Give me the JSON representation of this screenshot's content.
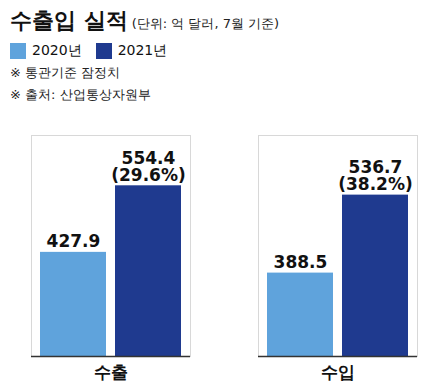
{
  "chart_data": {
    "type": "bar",
    "title": "수출입 실적",
    "subtitle": "(단위: 억 달러, 7월 기준)",
    "annotations": [
      "※ 통관기준 잠정치",
      "※ 출처: 산업통상자원부"
    ],
    "categories": [
      "수출",
      "수입"
    ],
    "series": [
      {
        "name": "2020년",
        "color": "#5fa3dc",
        "values": [
          427.9,
          388.5
        ]
      },
      {
        "name": "2021년",
        "color": "#1f3a8f",
        "values": [
          554.4,
          536.7
        ],
        "growth_labels": [
          "(29.6%)",
          "(38.2%)"
        ]
      }
    ],
    "ylim": [
      230,
      650
    ],
    "yticks": [],
    "tick_labels": "x",
    "data_labels": true,
    "legend": "top-left"
  }
}
